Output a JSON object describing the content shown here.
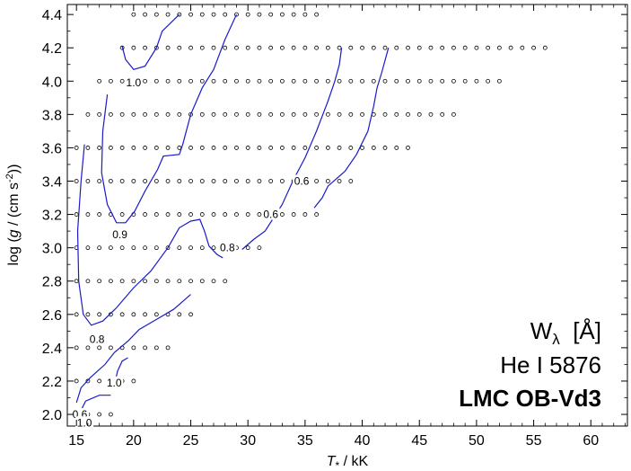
{
  "chart_data": {
    "type": "line",
    "xlabel_main": "T",
    "xlabel_sub": "*",
    "xlabel_unit": " / kK",
    "ylabel_pre": "log (",
    "ylabel_g": "g",
    "ylabel_mid": " / (cm s",
    "ylabel_sup": "-2",
    "ylabel_post": "))",
    "xlim": [
      14.2,
      63.2
    ],
    "ylim": [
      1.93,
      4.46
    ],
    "x_ticks": [
      15,
      20,
      25,
      30,
      35,
      40,
      45,
      50,
      55,
      60
    ],
    "y_ticks": [
      2.0,
      2.2,
      2.4,
      2.6,
      2.8,
      3.0,
      3.2,
      3.4,
      3.6,
      3.8,
      4.0,
      4.2,
      4.4
    ],
    "y_tick_labels": [
      "2.0",
      "2.2",
      "2.4",
      "2.6",
      "2.8",
      "3.0",
      "3.2",
      "3.4",
      "3.6",
      "3.8",
      "4.0",
      "4.2",
      "4.4"
    ],
    "annotation": {
      "quantity": "W",
      "quantity_sub": "λ",
      "quantity_unit": "  [Å]",
      "line_name": "He I 5876",
      "grid_name": "LMC OB-Vd3"
    },
    "grid_rows": [
      {
        "logg": 2.0,
        "tmin": 15,
        "tmax": 18
      },
      {
        "logg": 2.2,
        "tmin": 15,
        "tmax": 20
      },
      {
        "logg": 2.4,
        "tmin": 15,
        "tmax": 23
      },
      {
        "logg": 2.6,
        "tmin": 15,
        "tmax": 25
      },
      {
        "logg": 2.8,
        "tmin": 15,
        "tmax": 28
      },
      {
        "logg": 3.0,
        "tmin": 15,
        "tmax": 31
      },
      {
        "logg": 3.2,
        "tmin": 15,
        "tmax": 36
      },
      {
        "logg": 3.4,
        "tmin": 15,
        "tmax": 39
      },
      {
        "logg": 3.6,
        "tmin": 15,
        "tmax": 44
      },
      {
        "logg": 3.8,
        "tmin": 16,
        "tmax": 48
      },
      {
        "logg": 4.0,
        "tmin": 17,
        "tmax": 52
      },
      {
        "logg": 4.2,
        "tmin": 19,
        "tmax": 56
      },
      {
        "logg": 4.4,
        "tmin": 20,
        "tmax": 36
      }
    ],
    "contours": [
      {
        "level": "1.0",
        "points": [
          [
            15.0,
            1.97
          ],
          [
            15.8,
            2.08
          ],
          [
            17.0,
            2.115
          ],
          [
            18.0,
            2.115
          ]
        ]
      },
      {
        "level": "0.6",
        "points": [
          [
            15.0,
            2.07
          ],
          [
            15.4,
            2.16
          ],
          [
            16.2,
            2.22
          ],
          [
            17.5,
            2.3
          ],
          [
            18.3,
            2.37
          ],
          [
            19.5,
            2.44
          ],
          [
            20.5,
            2.51
          ],
          [
            22.0,
            2.57
          ],
          [
            23.5,
            2.63
          ],
          [
            24.5,
            2.69
          ],
          [
            25.0,
            2.72
          ]
        ]
      },
      {
        "level": "1.0",
        "points": [
          [
            18.3,
            2.17
          ],
          [
            18.6,
            2.26
          ],
          [
            19.0,
            2.32
          ],
          [
            19.5,
            2.34
          ]
        ]
      },
      {
        "level": "0.8",
        "points": [
          [
            15.7,
            3.62
          ],
          [
            15.4,
            3.4
          ],
          [
            15.1,
            3.1
          ],
          [
            15.2,
            2.8
          ],
          [
            15.6,
            2.6
          ],
          [
            16.3,
            2.535
          ],
          [
            17.3,
            2.56
          ],
          [
            18.5,
            2.64
          ],
          [
            20.0,
            2.76
          ],
          [
            21.5,
            2.86
          ],
          [
            23.0,
            3.0
          ],
          [
            24.0,
            3.12
          ],
          [
            25.0,
            3.16
          ],
          [
            25.8,
            3.17
          ],
          [
            26.2,
            3.1
          ],
          [
            26.6,
            3.01
          ],
          [
            27.3,
            2.96
          ],
          [
            27.8,
            2.94
          ]
        ]
      },
      {
        "level": "0.9",
        "points": [
          [
            17.7,
            3.92
          ],
          [
            17.3,
            3.7
          ],
          [
            17.2,
            3.45
          ],
          [
            17.7,
            3.26
          ],
          [
            18.5,
            3.15
          ],
          [
            19.3,
            3.15
          ],
          [
            20.1,
            3.22
          ],
          [
            21.0,
            3.34
          ],
          [
            22.1,
            3.47
          ],
          [
            22.6,
            3.55
          ],
          [
            24.0,
            3.56
          ],
          [
            24.3,
            3.62
          ],
          [
            25.0,
            3.8
          ],
          [
            26.0,
            3.96
          ],
          [
            27.0,
            4.07
          ],
          [
            28.0,
            4.25
          ],
          [
            29.0,
            4.4
          ]
        ]
      },
      {
        "level": "1.0",
        "points": [
          [
            19.0,
            4.21
          ],
          [
            19.3,
            4.13
          ],
          [
            20.0,
            4.07
          ],
          [
            21.0,
            4.09
          ],
          [
            22.0,
            4.2
          ],
          [
            22.5,
            4.3
          ],
          [
            24.0,
            4.4
          ]
        ]
      },
      {
        "level": "0.6",
        "points": [
          [
            29.5,
            2.99
          ],
          [
            30.5,
            3.05
          ],
          [
            31.5,
            3.1
          ],
          [
            33.0,
            3.26
          ],
          [
            34.0,
            3.41
          ],
          [
            35.0,
            3.54
          ],
          [
            36.0,
            3.7
          ],
          [
            37.0,
            3.88
          ],
          [
            37.6,
            4.0
          ],
          [
            38.0,
            4.1
          ],
          [
            38.2,
            4.2
          ]
        ]
      },
      {
        "level": "0.6",
        "points": [
          [
            35.8,
            3.24
          ],
          [
            36.5,
            3.3
          ],
          [
            37.0,
            3.37
          ],
          [
            38.5,
            3.46
          ],
          [
            39.5,
            3.56
          ],
          [
            40.5,
            3.7
          ],
          [
            41.0,
            3.85
          ],
          [
            41.3,
            3.96
          ],
          [
            41.7,
            4.05
          ],
          [
            42.3,
            4.2
          ]
        ]
      }
    ],
    "contour_labels": [
      {
        "text": "0.6",
        "x": 15.3,
        "y": 2.0
      },
      {
        "text": "1.0",
        "x": 15.7,
        "y": 1.95
      },
      {
        "text": "1.0",
        "x": 18.3,
        "y": 2.19
      },
      {
        "text": "0.8",
        "x": 16.8,
        "y": 2.45
      },
      {
        "text": "0.9",
        "x": 18.8,
        "y": 3.08
      },
      {
        "text": "0.8",
        "x": 28.2,
        "y": 3.0
      },
      {
        "text": "0.6",
        "x": 32.0,
        "y": 3.2
      },
      {
        "text": "0.6",
        "x": 34.7,
        "y": 3.4
      },
      {
        "text": "1.0",
        "x": 20.0,
        "y": 3.99
      }
    ],
    "colors": {
      "contour": "#1a1acc",
      "axis": "#000000",
      "marker": "#000000"
    }
  }
}
